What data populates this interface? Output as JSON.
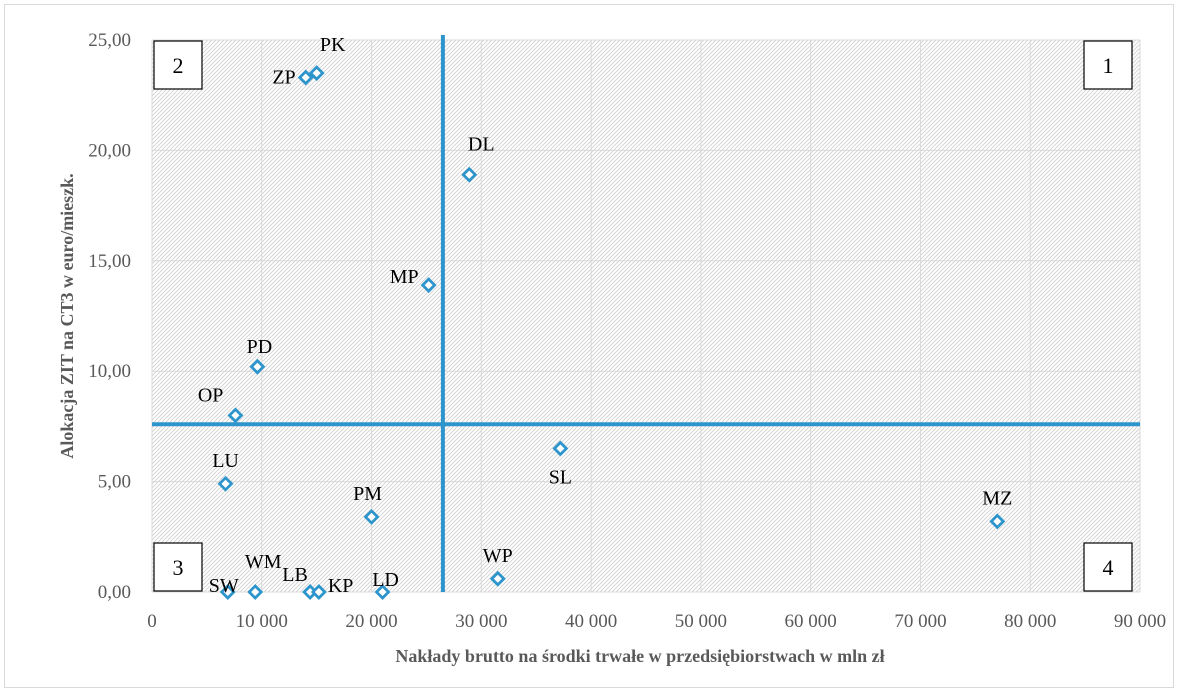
{
  "chart_data": {
    "type": "scatter",
    "title": "",
    "xlabel": "Nakłady brutto na środki trwałe w przedsiębiorstwach w mln zł",
    "ylabel": "Alokacja ZIT na CT3 w euro/mieszk.",
    "xlim": [
      0,
      90000
    ],
    "ylim": [
      0,
      25
    ],
    "x_ticks": [
      "0",
      "10 000",
      "20 000",
      "30 000",
      "40 000",
      "50 000",
      "60 000",
      "70 000",
      "80 000",
      "90 000"
    ],
    "y_ticks": [
      "0,00",
      "5,00",
      "10,00",
      "15,00",
      "20,00",
      "25,00"
    ],
    "grid": true,
    "reference_lines": {
      "x": 26500,
      "y": 7.6
    },
    "quadrant_labels": [
      "1",
      "2",
      "3",
      "4"
    ],
    "points": [
      {
        "label": "PK",
        "x": 15000,
        "y": 23.5
      },
      {
        "label": "ZP",
        "x": 14000,
        "y": 23.3
      },
      {
        "label": "DL",
        "x": 28900,
        "y": 18.9
      },
      {
        "label": "MP",
        "x": 25200,
        "y": 13.9
      },
      {
        "label": "PD",
        "x": 9600,
        "y": 10.2
      },
      {
        "label": "OP",
        "x": 7600,
        "y": 8.0
      },
      {
        "label": "SL",
        "x": 37200,
        "y": 6.5
      },
      {
        "label": "LU",
        "x": 6700,
        "y": 4.9
      },
      {
        "label": "PM",
        "x": 20000,
        "y": 3.4
      },
      {
        "label": "MZ",
        "x": 77000,
        "y": 3.2
      },
      {
        "label": "WP",
        "x": 31500,
        "y": 0.6
      },
      {
        "label": "SW",
        "x": 6900,
        "y": 0.0
      },
      {
        "label": "WM",
        "x": 9400,
        "y": 0.0
      },
      {
        "label": "LB",
        "x": 14400,
        "y": 0.0
      },
      {
        "label": "KP",
        "x": 15200,
        "y": 0.0
      },
      {
        "label": "LD",
        "x": 21000,
        "y": 0.0
      }
    ],
    "colors": {
      "marker": "#2e95cc",
      "reference_line": "#2e95cc",
      "grid": "#d9d9d9"
    }
  }
}
